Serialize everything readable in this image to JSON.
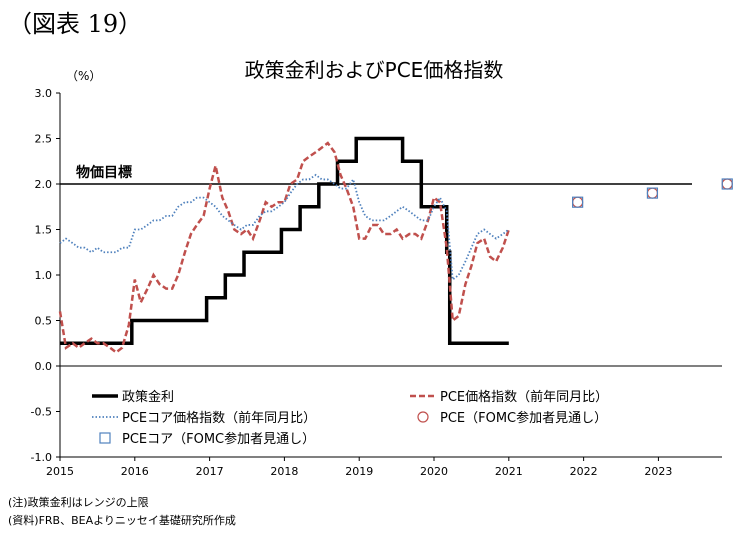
{
  "figure_label": "（図表 19）",
  "notes": {
    "note1": "(注)政策金利はレンジの上限",
    "note2": "(資料)FRB、BEAよりニッセイ基礎研究所作成"
  },
  "chart_data": {
    "type": "line",
    "title": "政策金利およびPCE価格指数",
    "ylabel": "（%）",
    "ylim": [
      -1.0,
      3.0
    ],
    "xlim": [
      2015.0,
      2023.85
    ],
    "yticks": [
      "3.0",
      "2.5",
      "2.0",
      "1.5",
      "1.0",
      "0.5",
      "0.0",
      "-0.5",
      "-1.0"
    ],
    "xticks": [
      "2015",
      "2016",
      "2017",
      "2018",
      "2019",
      "2020",
      "2021",
      "2022",
      "2023"
    ],
    "target": {
      "label": "物価目標",
      "value": 2.0
    },
    "legend_placement": "bottom",
    "series": [
      {
        "name": "政策金利",
        "style": "step",
        "color": "#000000",
        "x": [
          2015.0,
          2015.96,
          2016.96,
          2017.21,
          2017.46,
          2017.96,
          2018.21,
          2018.46,
          2018.71,
          2018.96,
          2019.58,
          2019.83,
          2020.17,
          2020.21,
          2021.0
        ],
        "y": [
          0.25,
          0.5,
          0.75,
          1.0,
          1.25,
          1.5,
          1.75,
          2.0,
          2.25,
          2.5,
          2.25,
          1.75,
          1.25,
          0.25,
          0.25
        ]
      },
      {
        "name": "PCE価格指数（前年同月比）",
        "style": "dashed",
        "color": "#c0504d",
        "x": [
          2015.0,
          2015.08,
          2015.17,
          2015.25,
          2015.33,
          2015.42,
          2015.5,
          2015.58,
          2015.67,
          2015.75,
          2015.83,
          2015.92,
          2016.0,
          2016.08,
          2016.17,
          2016.25,
          2016.33,
          2016.42,
          2016.5,
          2016.58,
          2016.67,
          2016.75,
          2016.83,
          2016.92,
          2017.0,
          2017.08,
          2017.17,
          2017.25,
          2017.33,
          2017.42,
          2017.5,
          2017.58,
          2017.67,
          2017.75,
          2017.83,
          2017.92,
          2018.0,
          2018.08,
          2018.17,
          2018.25,
          2018.33,
          2018.42,
          2018.5,
          2018.58,
          2018.67,
          2018.75,
          2018.83,
          2018.92,
          2019.0,
          2019.08,
          2019.17,
          2019.25,
          2019.33,
          2019.42,
          2019.5,
          2019.58,
          2019.67,
          2019.75,
          2019.83,
          2019.92,
          2020.0,
          2020.08,
          2020.17,
          2020.25,
          2020.33,
          2020.42,
          2020.5,
          2020.58,
          2020.67,
          2020.75,
          2020.83,
          2020.92,
          2021.0
        ],
        "y": [
          0.6,
          0.2,
          0.25,
          0.2,
          0.25,
          0.3,
          0.25,
          0.25,
          0.2,
          0.15,
          0.2,
          0.45,
          0.95,
          0.7,
          0.85,
          1.0,
          0.9,
          0.85,
          0.85,
          1.0,
          1.25,
          1.45,
          1.55,
          1.65,
          1.95,
          2.2,
          1.85,
          1.7,
          1.5,
          1.45,
          1.5,
          1.4,
          1.6,
          1.8,
          1.75,
          1.8,
          1.8,
          2.0,
          2.05,
          2.25,
          2.3,
          2.35,
          2.4,
          2.45,
          2.35,
          2.1,
          1.95,
          1.75,
          1.4,
          1.4,
          1.55,
          1.55,
          1.45,
          1.45,
          1.5,
          1.4,
          1.45,
          1.45,
          1.4,
          1.6,
          1.85,
          1.8,
          1.3,
          0.5,
          0.55,
          0.9,
          1.1,
          1.35,
          1.4,
          1.2,
          1.15,
          1.3,
          1.5
        ]
      },
      {
        "name": "PCEコア価格指数（前年同月比）",
        "style": "dotted",
        "color": "#4f81bd",
        "x": [
          2015.0,
          2015.08,
          2015.17,
          2015.25,
          2015.33,
          2015.42,
          2015.5,
          2015.58,
          2015.67,
          2015.75,
          2015.83,
          2015.92,
          2016.0,
          2016.08,
          2016.17,
          2016.25,
          2016.33,
          2016.42,
          2016.5,
          2016.58,
          2016.67,
          2016.75,
          2016.83,
          2016.92,
          2017.0,
          2017.08,
          2017.17,
          2017.25,
          2017.33,
          2017.42,
          2017.5,
          2017.58,
          2017.67,
          2017.75,
          2017.83,
          2017.92,
          2018.0,
          2018.08,
          2018.17,
          2018.25,
          2018.33,
          2018.42,
          2018.5,
          2018.58,
          2018.67,
          2018.75,
          2018.83,
          2018.92,
          2019.0,
          2019.08,
          2019.17,
          2019.25,
          2019.33,
          2019.42,
          2019.5,
          2019.58,
          2019.67,
          2019.75,
          2019.83,
          2019.92,
          2020.0,
          2020.08,
          2020.17,
          2020.25,
          2020.33,
          2020.42,
          2020.5,
          2020.58,
          2020.67,
          2020.75,
          2020.83,
          2020.92,
          2021.0
        ],
        "y": [
          1.35,
          1.4,
          1.35,
          1.3,
          1.3,
          1.25,
          1.3,
          1.25,
          1.25,
          1.25,
          1.3,
          1.3,
          1.5,
          1.5,
          1.55,
          1.6,
          1.6,
          1.65,
          1.65,
          1.75,
          1.8,
          1.8,
          1.85,
          1.85,
          1.8,
          1.75,
          1.65,
          1.6,
          1.55,
          1.5,
          1.55,
          1.55,
          1.65,
          1.7,
          1.7,
          1.75,
          1.8,
          1.9,
          2.0,
          2.05,
          2.05,
          2.1,
          2.05,
          2.05,
          2.0,
          1.95,
          1.95,
          2.05,
          1.8,
          1.65,
          1.6,
          1.6,
          1.6,
          1.65,
          1.7,
          1.75,
          1.7,
          1.65,
          1.6,
          1.6,
          1.75,
          1.85,
          1.7,
          0.95,
          1.0,
          1.15,
          1.3,
          1.45,
          1.5,
          1.45,
          1.4,
          1.45,
          1.5
        ]
      },
      {
        "name": "PCE（FOMC参加者見通し）",
        "style": "marker-circle",
        "color": "#c0504d",
        "x": [
          2021.92,
          2022.92,
          2023.92
        ],
        "y": [
          1.8,
          1.9,
          2.0
        ]
      },
      {
        "name": "PCEコア（FOMC参加者見通し）",
        "style": "marker-square",
        "color": "#4f81bd",
        "x": [
          2021.92,
          2022.92,
          2023.92
        ],
        "y": [
          1.8,
          1.9,
          2.0
        ]
      }
    ]
  }
}
